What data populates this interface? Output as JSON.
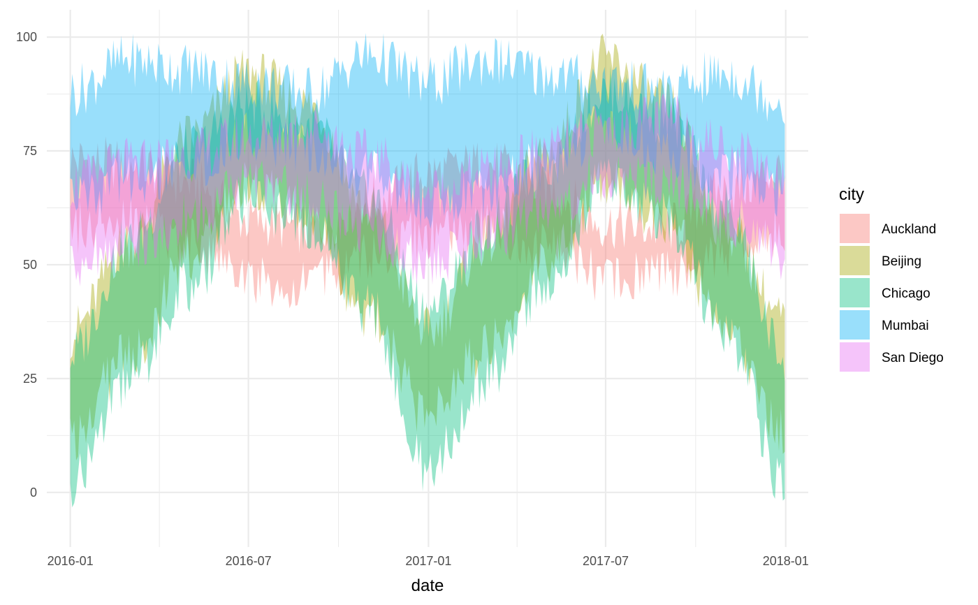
{
  "chart_data": {
    "type": "area",
    "title": "",
    "xlabel": "date",
    "ylabel": "",
    "x_ticks": [
      "2016-01",
      "2016-07",
      "2017-01",
      "2017-07",
      "2018-01"
    ],
    "y_ticks": [
      0,
      25,
      50,
      75,
      100
    ],
    "xlim": [
      "2015-12-08",
      "2018-01-24"
    ],
    "ylim": [
      -12,
      106
    ],
    "grid": true,
    "legend": {
      "title": "city",
      "position": "right"
    },
    "fill_opacity": 0.4,
    "series": [
      {
        "name": "Auckland",
        "color": "#F8766D",
        "x": [
          "2016-01-01",
          "2016-03-01",
          "2016-05-01",
          "2016-07-01",
          "2016-09-01",
          "2016-11-01",
          "2017-01-01",
          "2017-03-01",
          "2017-05-01",
          "2017-07-01",
          "2017-09-01",
          "2017-11-01",
          "2017-12-31"
        ],
        "low": [
          58,
          60,
          55,
          47,
          46,
          52,
          57,
          58,
          54,
          47,
          48,
          53,
          57
        ],
        "high": [
          73,
          72,
          68,
          60,
          58,
          64,
          70,
          72,
          67,
          59,
          58,
          66,
          71
        ]
      },
      {
        "name": "Beijing",
        "color": "#A3A500",
        "x": [
          "2016-01-01",
          "2016-03-01",
          "2016-05-01",
          "2016-07-01",
          "2016-09-01",
          "2016-11-01",
          "2017-01-01",
          "2017-03-01",
          "2017-05-01",
          "2017-07-01",
          "2017-09-01",
          "2017-11-01",
          "2017-12-31"
        ],
        "low": [
          12,
          30,
          52,
          68,
          62,
          38,
          17,
          32,
          50,
          68,
          60,
          35,
          14
        ],
        "high": [
          35,
          55,
          78,
          92,
          85,
          62,
          35,
          55,
          75,
          95,
          85,
          58,
          38
        ]
      },
      {
        "name": "Chicago",
        "color": "#00BF7D",
        "x": [
          "2016-01-01",
          "2016-03-01",
          "2016-05-01",
          "2016-07-01",
          "2016-09-01",
          "2016-11-01",
          "2017-01-01",
          "2017-03-01",
          "2017-05-01",
          "2017-07-01",
          "2017-09-01",
          "2017-11-01",
          "2017-12-31"
        ],
        "low": [
          2,
          25,
          45,
          65,
          58,
          40,
          5,
          25,
          45,
          68,
          60,
          35,
          2
        ],
        "high": [
          30,
          55,
          75,
          85,
          80,
          65,
          40,
          58,
          72,
          88,
          82,
          62,
          30
        ]
      },
      {
        "name": "Mumbai",
        "color": "#00B0F6",
        "x": [
          "2016-01-01",
          "2016-03-01",
          "2016-05-01",
          "2016-07-01",
          "2016-09-01",
          "2016-11-01",
          "2017-01-01",
          "2017-03-01",
          "2017-05-01",
          "2017-07-01",
          "2017-09-01",
          "2017-11-01",
          "2017-12-31"
        ],
        "low": [
          65,
          68,
          72,
          78,
          76,
          70,
          63,
          66,
          72,
          80,
          75,
          70,
          66
        ],
        "high": [
          88,
          95,
          93,
          90,
          88,
          96,
          90,
          95,
          92,
          90,
          88,
          92,
          86
        ]
      },
      {
        "name": "San Diego",
        "color": "#E76BF3",
        "x": [
          "2016-01-01",
          "2016-03-01",
          "2016-05-01",
          "2016-07-01",
          "2016-09-01",
          "2016-11-01",
          "2017-01-01",
          "2017-03-01",
          "2017-05-01",
          "2017-07-01",
          "2017-09-01",
          "2017-11-01",
          "2017-12-31"
        ],
        "low": [
          50,
          55,
          60,
          68,
          65,
          58,
          50,
          55,
          62,
          70,
          68,
          60,
          52
        ],
        "high": [
          68,
          72,
          74,
          78,
          80,
          74,
          66,
          70,
          75,
          80,
          82,
          76,
          70
        ]
      }
    ]
  }
}
